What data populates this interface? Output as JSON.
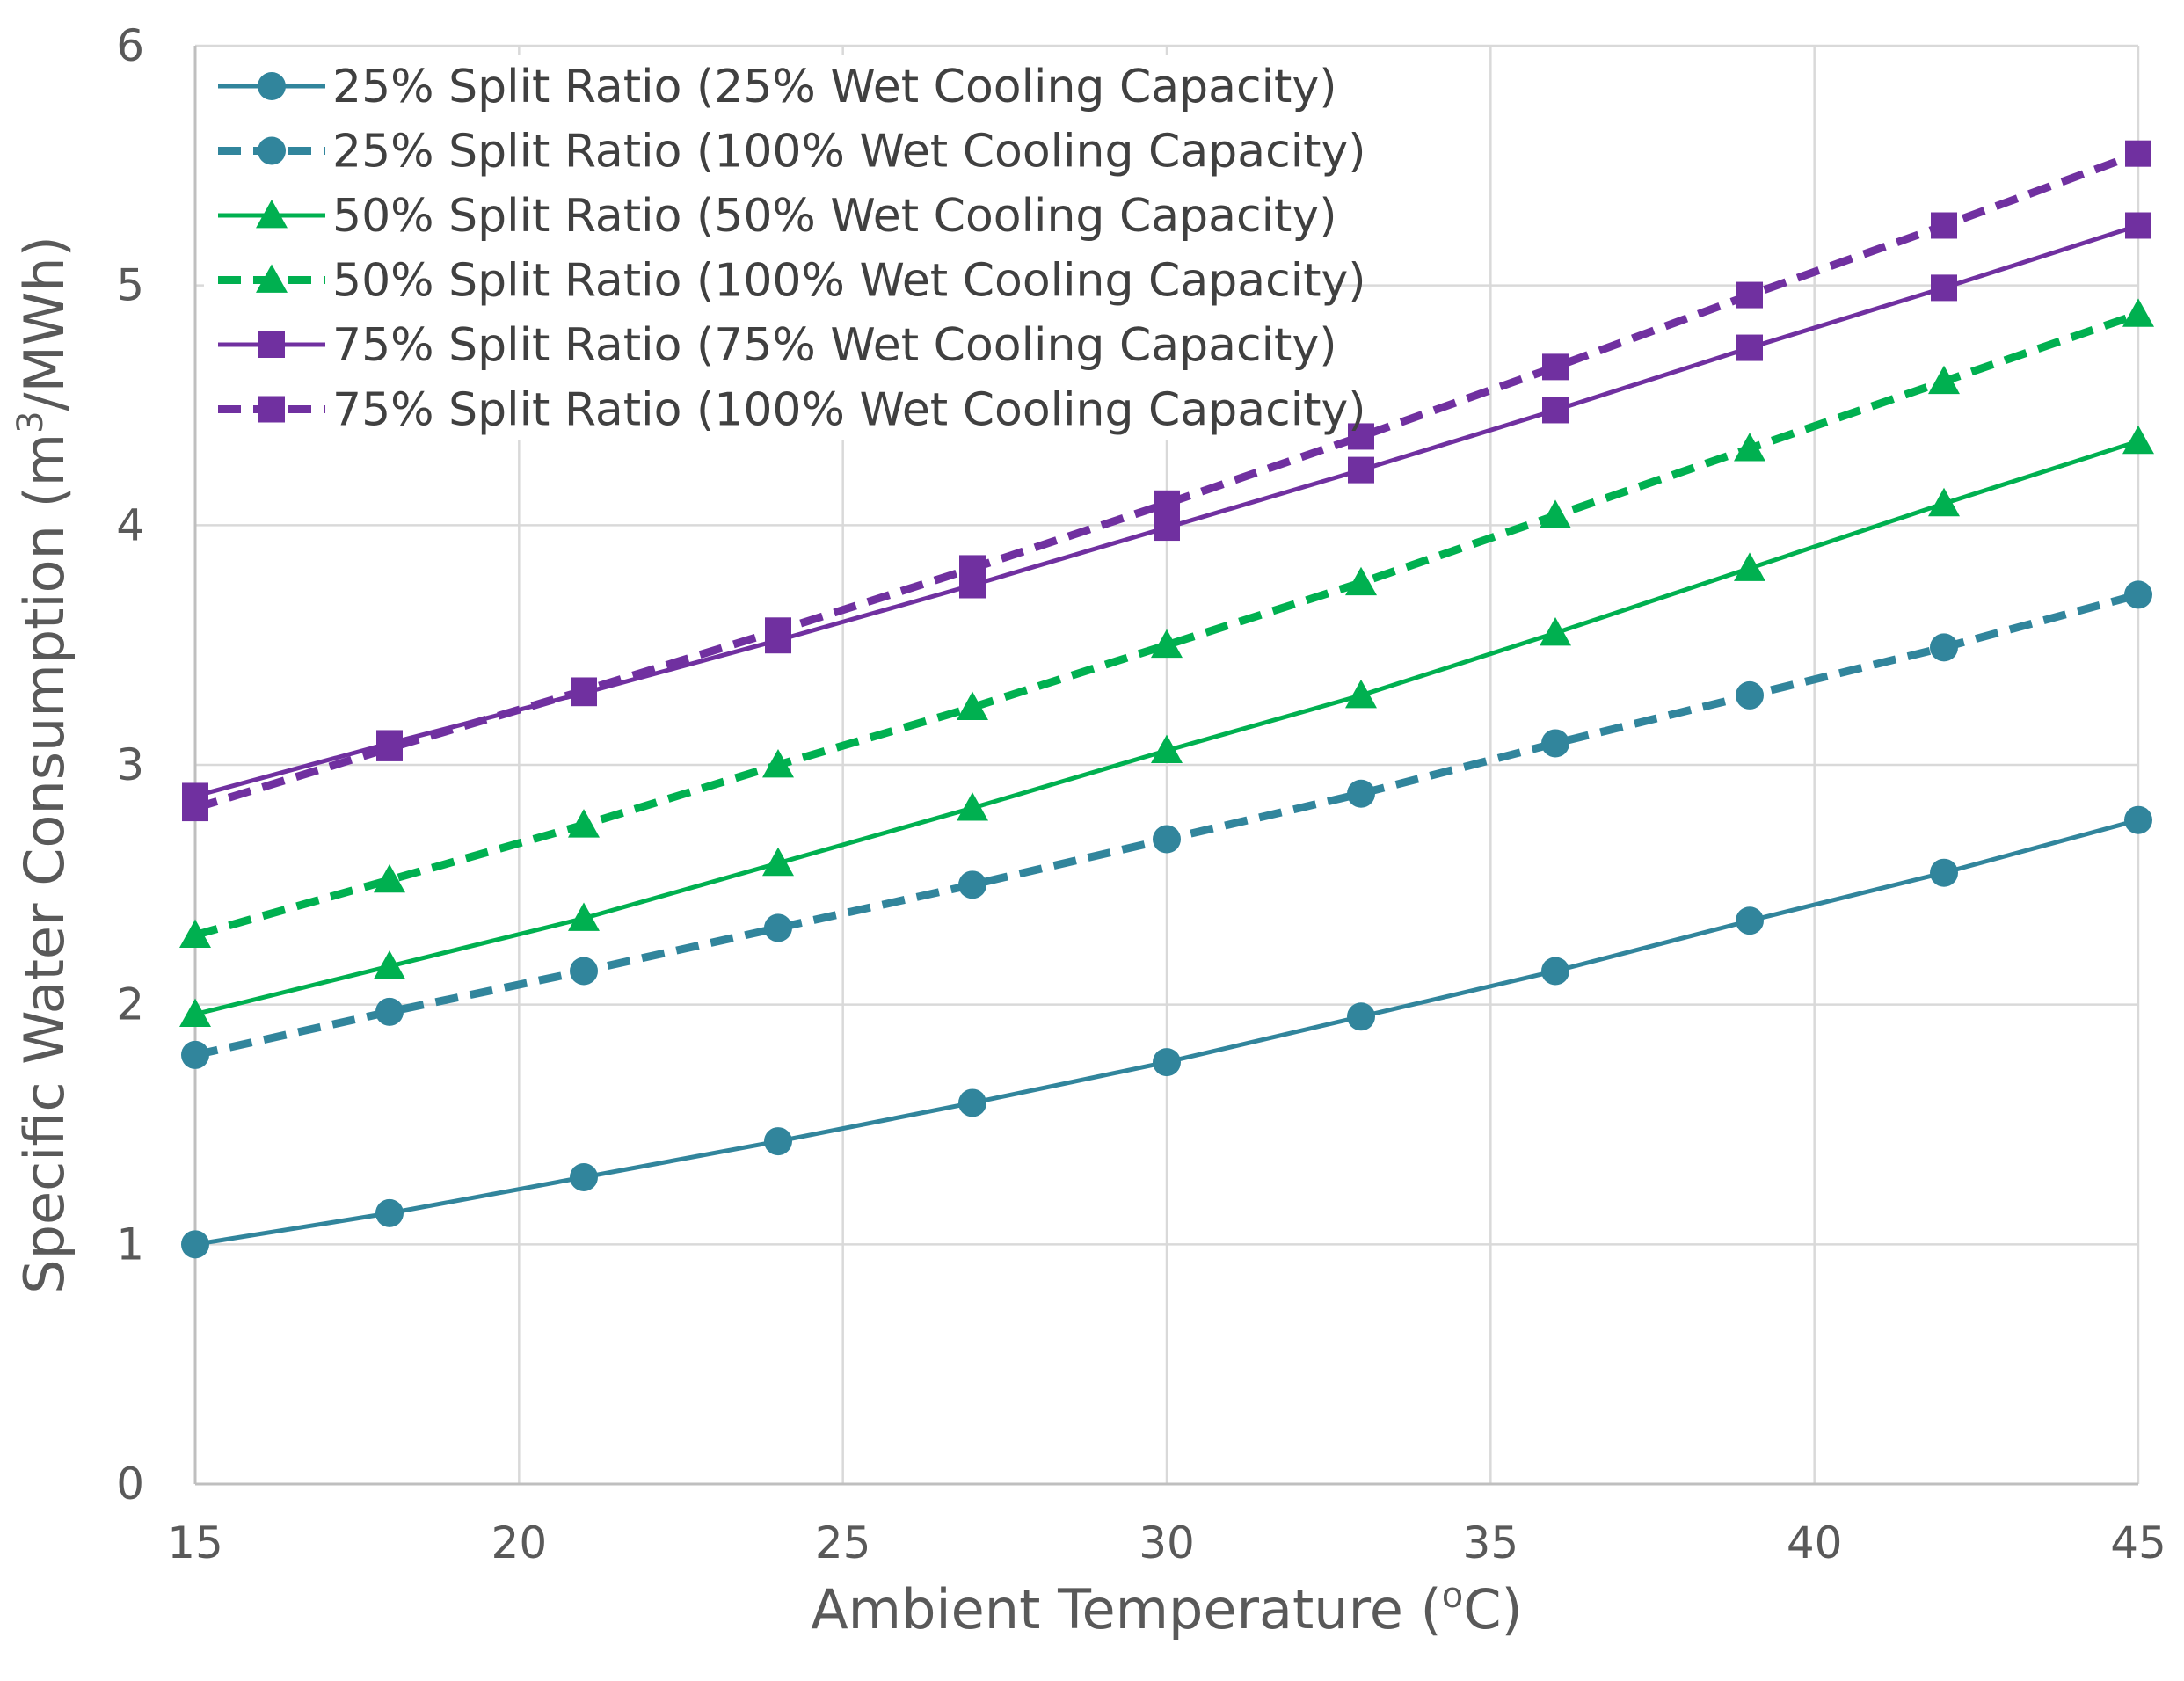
{
  "chart_data": {
    "type": "line",
    "title": "",
    "xlabel": "Ambient Temperature (",
    "xlabel_sup": "o",
    "xlabel_suffix": "C)",
    "ylabel": "Specific Water Consumption (m",
    "ylabel_sup": "3",
    "ylabel_suffix": "/MWh)",
    "xlim": [
      15,
      45
    ],
    "ylim": [
      0,
      6
    ],
    "x_ticks": [
      15,
      20,
      25,
      30,
      35,
      40,
      45
    ],
    "y_ticks": [
      0,
      1,
      2,
      3,
      4,
      5,
      6
    ],
    "grid": true,
    "legend_position": "top-left",
    "x": [
      15,
      18,
      21,
      24,
      27,
      30,
      33,
      36,
      39,
      42,
      45
    ],
    "series": [
      {
        "name": "25% Split Ratio (25% Wet Cooling Capacity)",
        "color": "#31859c",
        "dash": "solid",
        "marker": "circle",
        "values": [
          1.0,
          1.13,
          1.28,
          1.43,
          1.59,
          1.76,
          1.95,
          2.14,
          2.35,
          2.55,
          2.77
        ]
      },
      {
        "name": "25% Split Ratio (100% Wet Cooling Capacity)",
        "color": "#31859c",
        "dash": "dashed",
        "marker": "circle",
        "values": [
          1.79,
          1.97,
          2.14,
          2.32,
          2.5,
          2.69,
          2.88,
          3.09,
          3.29,
          3.49,
          3.71
        ]
      },
      {
        "name": "50% Split Ratio (50% Wet Cooling Capacity)",
        "color": "#00b050",
        "dash": "solid",
        "marker": "triangle",
        "values": [
          1.96,
          2.16,
          2.36,
          2.59,
          2.82,
          3.06,
          3.29,
          3.55,
          3.82,
          4.09,
          4.35
        ]
      },
      {
        "name": "50% Split Ratio (100% Wet Cooling Capacity)",
        "color": "#00b050",
        "dash": "dashed",
        "marker": "triangle",
        "values": [
          2.29,
          2.52,
          2.75,
          3.0,
          3.24,
          3.5,
          3.76,
          4.04,
          4.32,
          4.6,
          4.88
        ]
      },
      {
        "name": "75% Split Ratio (75% Wet Cooling Capacity)",
        "color": "#7030a0",
        "dash": "solid",
        "marker": "square",
        "values": [
          2.87,
          3.09,
          3.3,
          3.52,
          3.75,
          3.99,
          4.23,
          4.48,
          4.74,
          4.99,
          5.25
        ]
      },
      {
        "name": "75% Split Ratio (100% Wet Cooling Capacity)",
        "color": "#7030a0",
        "dash": "dashed",
        "marker": "square",
        "values": [
          2.82,
          3.07,
          3.31,
          3.56,
          3.82,
          4.09,
          4.37,
          4.66,
          4.96,
          5.25,
          5.55
        ]
      }
    ]
  }
}
